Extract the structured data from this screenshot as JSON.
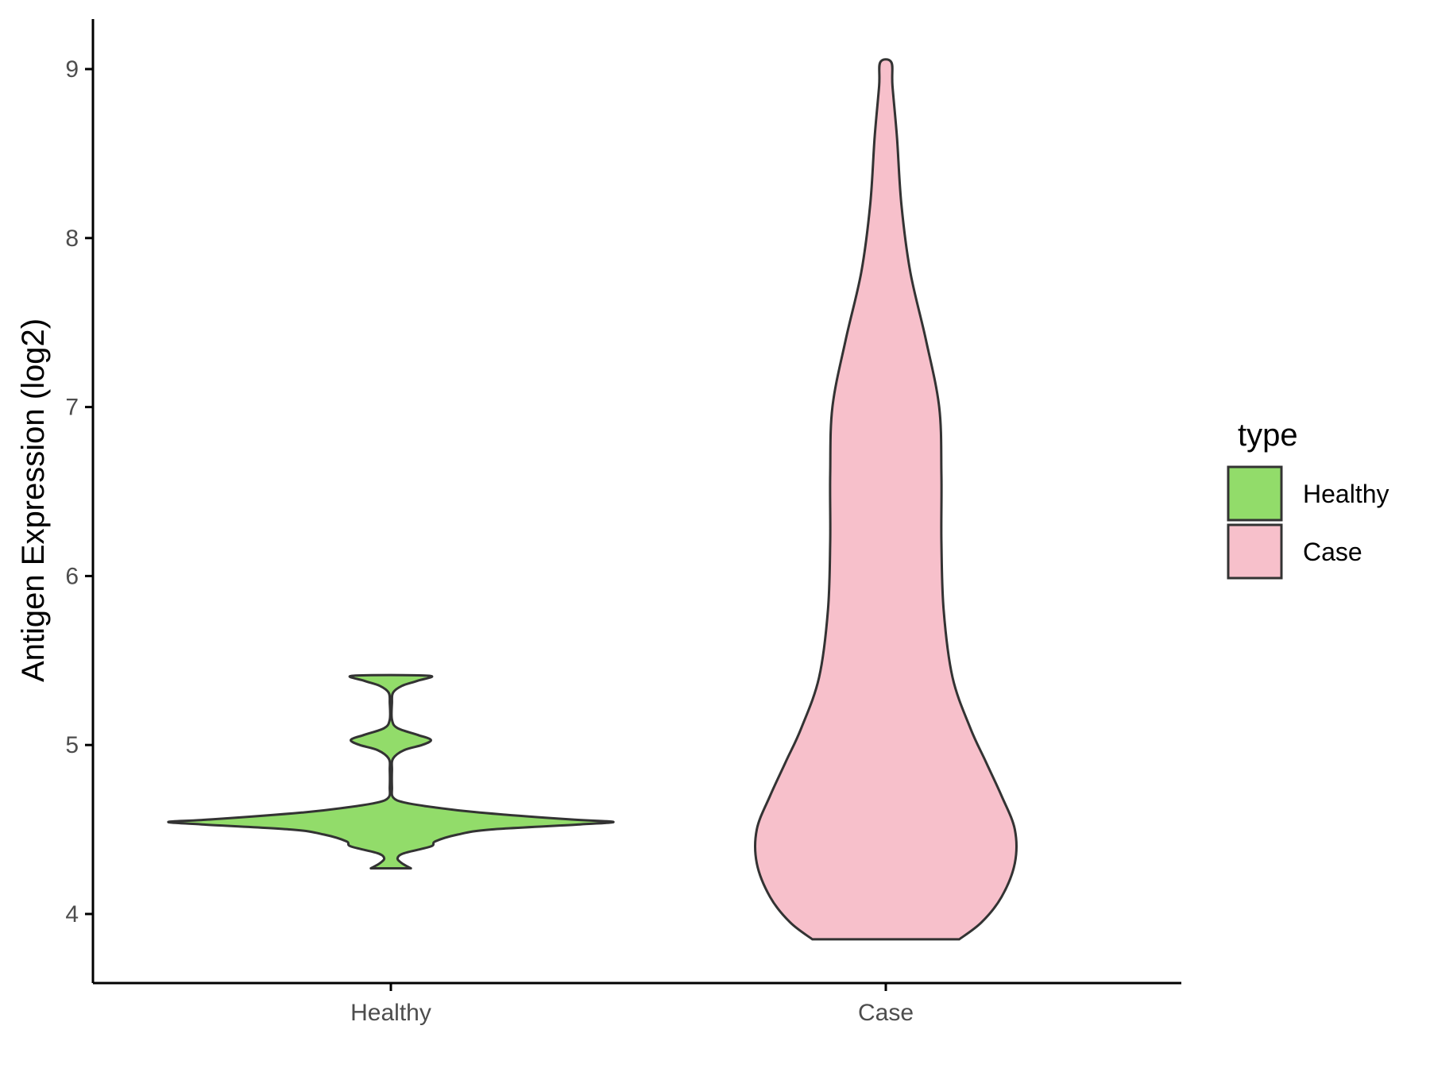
{
  "chart_data": {
    "type": "violin",
    "title": "",
    "xlabel": "",
    "ylabel": "Antigen Expression (log2)",
    "ylim": [
      3.6,
      9.3
    ],
    "yticks": [
      4,
      5,
      6,
      7,
      8,
      9
    ],
    "categories": [
      "Healthy",
      "Case"
    ],
    "grid": false,
    "legend": {
      "title": "type",
      "placement": "right",
      "entries": [
        "Healthy",
        "Case"
      ]
    },
    "colors": {
      "Healthy": "#92dc6a",
      "Case": "#f7c0cb",
      "outline": "#333333",
      "axis": "#000000"
    },
    "series": [
      {
        "name": "Healthy",
        "min": 4.27,
        "max": 5.41,
        "density_profile": [
          [
            4.27,
            0.09
          ],
          [
            4.3,
            0.05
          ],
          [
            4.33,
            0.03
          ],
          [
            4.36,
            0.06
          ],
          [
            4.4,
            0.18
          ],
          [
            4.43,
            0.2
          ],
          [
            4.47,
            0.3
          ],
          [
            4.5,
            0.45
          ],
          [
            4.53,
            0.85
          ],
          [
            4.545,
            1.0
          ],
          [
            4.56,
            0.8
          ],
          [
            4.6,
            0.4
          ],
          [
            4.63,
            0.2
          ],
          [
            4.66,
            0.06
          ],
          [
            4.69,
            0.01
          ],
          [
            4.75,
            0.005
          ],
          [
            4.85,
            0.005
          ],
          [
            4.92,
            0.01
          ],
          [
            4.97,
            0.06
          ],
          [
            5.0,
            0.14
          ],
          [
            5.03,
            0.18
          ],
          [
            5.06,
            0.12
          ],
          [
            5.1,
            0.03
          ],
          [
            5.15,
            0.005
          ],
          [
            5.25,
            0.005
          ],
          [
            5.31,
            0.01
          ],
          [
            5.35,
            0.05
          ],
          [
            5.38,
            0.12
          ],
          [
            5.41,
            0.17
          ]
        ]
      },
      {
        "name": "Case",
        "min": 3.85,
        "max": 9.04,
        "density_profile": [
          [
            3.85,
            0.33
          ],
          [
            3.95,
            0.43
          ],
          [
            4.1,
            0.52
          ],
          [
            4.3,
            0.58
          ],
          [
            4.5,
            0.58
          ],
          [
            4.7,
            0.52
          ],
          [
            4.9,
            0.45
          ],
          [
            5.1,
            0.38
          ],
          [
            5.4,
            0.3
          ],
          [
            5.8,
            0.26
          ],
          [
            6.2,
            0.25
          ],
          [
            6.6,
            0.25
          ],
          [
            7.0,
            0.24
          ],
          [
            7.4,
            0.18
          ],
          [
            7.8,
            0.11
          ],
          [
            8.2,
            0.07
          ],
          [
            8.6,
            0.05
          ],
          [
            8.9,
            0.03
          ],
          [
            9.04,
            0.025
          ]
        ]
      }
    ]
  }
}
